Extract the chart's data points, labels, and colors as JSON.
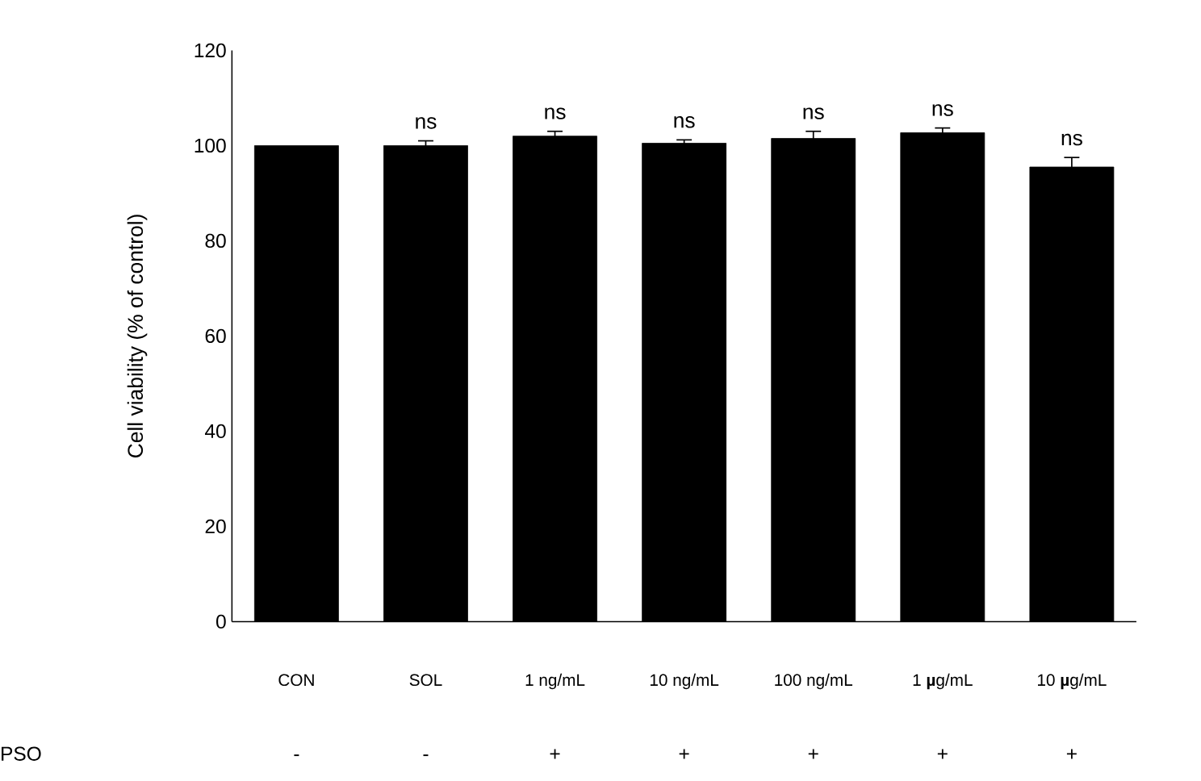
{
  "chart_data": {
    "type": "bar",
    "ylabel": "Cell viability (% of control)",
    "categories": [
      "CON",
      "SOL",
      "1 ng/mL",
      "10 ng/mL",
      "100 ng/mL",
      "1 **µ**g/mL",
      "10 **µ**g/mL"
    ],
    "values": [
      100,
      100,
      102,
      100.5,
      101.5,
      102.7,
      95.5
    ],
    "errors": [
      null,
      1,
      1,
      0.7,
      1.5,
      1,
      2
    ],
    "color": "#000000",
    "ylim": [
      0,
      120
    ],
    "yticks": [
      0,
      20,
      40,
      60,
      80,
      100,
      120
    ],
    "grid": false,
    "annotations": [
      {
        "text": "ns",
        "x": "SOL",
        "y": 100
      },
      {
        "text": "ns",
        "x": "1 ng/mL",
        "y": 102
      },
      {
        "text": "ns",
        "x": "10 ng/mL",
        "y": 100.5
      },
      {
        "text": "ns",
        "x": "100 ng/mL",
        "y": 101.5
      },
      {
        "text": "ns",
        "x": "1 **µ**g/mL",
        "y": 102.7
      },
      {
        "text": "ns",
        "x": "10 **µ**g/mL",
        "y": 95.5
      },
      "PSO",
      "-",
      "-",
      "+",
      "+",
      "+",
      "+",
      "+"
    ]
  }
}
